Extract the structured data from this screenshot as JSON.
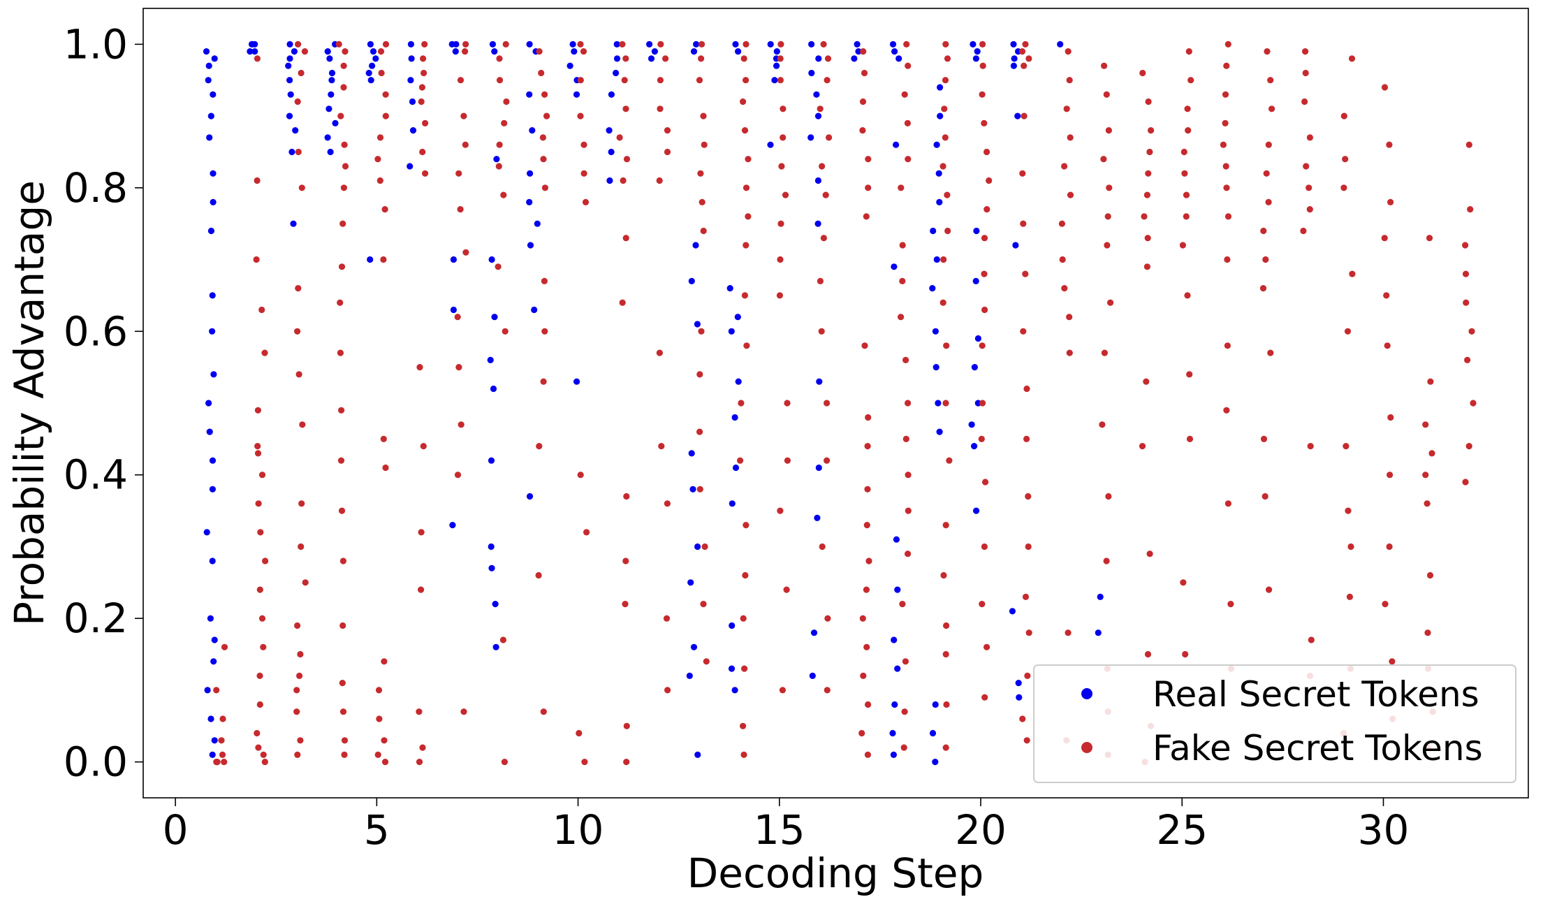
{
  "chart_data": {
    "type": "scatter",
    "title": "",
    "xlabel": "Decoding Step",
    "ylabel": "Probability Advantage",
    "xlim": [
      -0.8,
      33.6
    ],
    "ylim": [
      -0.05,
      1.05
    ],
    "xticks": [
      0,
      5,
      10,
      15,
      20,
      25,
      30
    ],
    "yticks": [
      0.0,
      0.2,
      0.4,
      0.6,
      0.8,
      1.0
    ],
    "xtick_labels": [
      "0",
      "5",
      "10",
      "15",
      "20",
      "25",
      "30"
    ],
    "ytick_labels": [
      "0.0",
      "0.2",
      "0.4",
      "0.6",
      "0.8",
      "1.0"
    ],
    "grid": false,
    "legend_position": "bottom-right",
    "series": [
      {
        "name": "Real Secret Tokens",
        "color": "#0000ee",
        "points": [
          {
            "step": 1,
            "y": [
              0.99,
              0.98,
              0.97,
              0.95,
              0.93,
              0.9,
              0.87,
              0.82,
              0.78,
              0.74,
              0.65,
              0.6,
              0.54,
              0.5,
              0.46,
              0.42,
              0.38,
              0.32,
              0.28,
              0.2,
              0.17,
              0.14,
              0.1,
              0.06,
              0.03,
              0.01
            ]
          },
          {
            "step": 2,
            "y": [
              1.0,
              1.0,
              0.99,
              1.0,
              0.99
            ]
          },
          {
            "step": 3,
            "y": [
              1.0,
              0.99,
              0.98,
              0.97,
              0.95,
              0.93,
              0.9,
              0.88,
              0.85,
              0.75
            ]
          },
          {
            "step": 4,
            "y": [
              1.0,
              0.99,
              0.98,
              0.96,
              0.95,
              0.93,
              0.91,
              0.89,
              0.87,
              0.85
            ]
          },
          {
            "step": 5,
            "y": [
              1.0,
              0.99,
              0.98,
              0.97,
              0.96,
              0.95,
              0.7
            ]
          },
          {
            "step": 6,
            "y": [
              1.0,
              0.98,
              0.95,
              0.92,
              0.88,
              0.83
            ]
          },
          {
            "step": 7,
            "y": [
              1.0,
              1.0,
              0.99,
              0.7,
              0.63,
              0.33
            ]
          },
          {
            "step": 8,
            "y": [
              1.0,
              0.99,
              0.84,
              0.7,
              0.62,
              0.56,
              0.52,
              0.42,
              0.3,
              0.27,
              0.22,
              0.16
            ]
          },
          {
            "step": 9,
            "y": [
              1.0,
              0.99,
              0.93,
              0.88,
              0.82,
              0.78,
              0.75,
              0.72,
              0.63,
              0.37
            ]
          },
          {
            "step": 10,
            "y": [
              1.0,
              0.99,
              0.97,
              0.95,
              0.93,
              0.53
            ]
          },
          {
            "step": 11,
            "y": [
              1.0,
              0.98,
              0.96,
              0.93,
              0.88,
              0.85,
              0.81
            ]
          },
          {
            "step": 12,
            "y": [
              1.0,
              0.99,
              0.98
            ]
          },
          {
            "step": 13,
            "y": [
              1.0,
              0.99,
              0.72,
              0.67,
              0.61,
              0.43,
              0.38,
              0.3,
              0.25,
              0.16,
              0.12,
              0.01
            ]
          },
          {
            "step": 14,
            "y": [
              1.0,
              0.99,
              0.66,
              0.62,
              0.6,
              0.53,
              0.48,
              0.41,
              0.36,
              0.19,
              0.13,
              0.1
            ]
          },
          {
            "step": 15,
            "y": [
              1.0,
              0.99,
              0.98,
              0.97,
              0.95,
              0.86
            ]
          },
          {
            "step": 16,
            "y": [
              1.0,
              0.98,
              0.96,
              0.93,
              0.9,
              0.87,
              0.81,
              0.75,
              0.53,
              0.41,
              0.34,
              0.18,
              0.12
            ]
          },
          {
            "step": 17,
            "y": [
              1.0,
              0.99,
              0.98
            ]
          },
          {
            "step": 18,
            "y": [
              1.0,
              0.99,
              0.98,
              0.86,
              0.69,
              0.31,
              0.24,
              0.17,
              0.13,
              0.08,
              0.04,
              0.01
            ]
          },
          {
            "step": 19,
            "y": [
              0.94,
              0.9,
              0.86,
              0.82,
              0.78,
              0.74,
              0.7,
              0.66,
              0.6,
              0.55,
              0.5,
              0.46,
              0.08,
              0.04,
              0.0
            ]
          },
          {
            "step": 20,
            "y": [
              1.0,
              0.99,
              0.98,
              0.74,
              0.67,
              0.59,
              0.55,
              0.5,
              0.47,
              0.44,
              0.35
            ]
          },
          {
            "step": 21,
            "y": [
              1.0,
              0.99,
              0.98,
              0.97,
              0.9,
              0.72,
              0.21,
              0.11,
              0.09
            ]
          },
          {
            "step": 22,
            "y": [
              1.0
            ]
          },
          {
            "step": 23,
            "y": [
              0.23,
              0.18
            ]
          }
        ]
      },
      {
        "name": "Fake Secret Tokens",
        "color": "#c62a2e",
        "points": [
          {
            "step": 1,
            "y": [
              0.16,
              0.1,
              0.06,
              0.03,
              0.01,
              0.0,
              0.0,
              0.0,
              0.0
            ]
          },
          {
            "step": 2,
            "y": [
              0.98,
              0.81,
              0.7,
              0.63,
              0.57,
              0.49,
              0.44,
              0.43,
              0.4,
              0.36,
              0.32,
              0.28,
              0.24,
              0.2,
              0.16,
              0.12,
              0.08,
              0.04,
              0.02,
              0.01,
              0.0
            ]
          },
          {
            "step": 3,
            "y": [
              1.0,
              0.99,
              0.96,
              0.92,
              0.85,
              0.8,
              0.66,
              0.6,
              0.54,
              0.47,
              0.36,
              0.3,
              0.25,
              0.19,
              0.15,
              0.12,
              0.1,
              0.07,
              0.03,
              0.01
            ]
          },
          {
            "step": 4,
            "y": [
              1.0,
              0.99,
              0.97,
              0.94,
              0.9,
              0.86,
              0.83,
              0.8,
              0.75,
              0.69,
              0.64,
              0.57,
              0.49,
              0.42,
              0.35,
              0.28,
              0.19,
              0.11,
              0.07,
              0.03,
              0.01
            ]
          },
          {
            "step": 5,
            "y": [
              1.0,
              0.99,
              0.96,
              0.93,
              0.9,
              0.87,
              0.84,
              0.81,
              0.77,
              0.7,
              0.45,
              0.41,
              0.14,
              0.1,
              0.06,
              0.03,
              0.01,
              0.0
            ]
          },
          {
            "step": 6,
            "y": [
              1.0,
              0.98,
              0.96,
              0.94,
              0.92,
              0.89,
              0.85,
              0.82,
              0.55,
              0.44,
              0.32,
              0.24,
              0.07,
              0.02,
              0.0
            ]
          },
          {
            "step": 7,
            "y": [
              1.0,
              0.99,
              0.95,
              0.9,
              0.86,
              0.82,
              0.77,
              0.71,
              0.62,
              0.55,
              0.47,
              0.4,
              0.07
            ]
          },
          {
            "step": 8,
            "y": [
              1.0,
              0.98,
              0.95,
              0.92,
              0.89,
              0.86,
              0.83,
              0.79,
              0.69,
              0.6,
              0.17,
              0.0
            ]
          },
          {
            "step": 9,
            "y": [
              0.99,
              0.96,
              0.93,
              0.9,
              0.87,
              0.84,
              0.8,
              0.67,
              0.6,
              0.53,
              0.44,
              0.26,
              0.07
            ]
          },
          {
            "step": 10,
            "y": [
              1.0,
              0.99,
              0.95,
              0.9,
              0.86,
              0.82,
              0.78,
              0.4,
              0.32,
              0.04,
              0.0
            ]
          },
          {
            "step": 11,
            "y": [
              1.0,
              0.98,
              0.95,
              0.91,
              0.87,
              0.84,
              0.81,
              0.73,
              0.64,
              0.37,
              0.28,
              0.22,
              0.05,
              0.0
            ]
          },
          {
            "step": 12,
            "y": [
              1.0,
              0.98,
              0.95,
              0.91,
              0.88,
              0.85,
              0.81,
              0.57,
              0.44,
              0.36,
              0.2,
              0.1
            ]
          },
          {
            "step": 13,
            "y": [
              1.0,
              0.98,
              0.95,
              0.9,
              0.86,
              0.82,
              0.78,
              0.74,
              0.6,
              0.54,
              0.46,
              0.38,
              0.3,
              0.22,
              0.14
            ]
          },
          {
            "step": 14,
            "y": [
              1.0,
              0.98,
              0.95,
              0.92,
              0.88,
              0.84,
              0.8,
              0.76,
              0.72,
              0.65,
              0.58,
              0.5,
              0.42,
              0.33,
              0.26,
              0.2,
              0.13,
              0.05,
              0.01
            ]
          },
          {
            "step": 15,
            "y": [
              1.0,
              0.98,
              0.95,
              0.91,
              0.87,
              0.83,
              0.79,
              0.75,
              0.7,
              0.65,
              0.5,
              0.42,
              0.35,
              0.24,
              0.1
            ]
          },
          {
            "step": 16,
            "y": [
              1.0,
              0.98,
              0.95,
              0.91,
              0.87,
              0.83,
              0.79,
              0.73,
              0.67,
              0.6,
              0.5,
              0.42,
              0.3,
              0.2,
              0.1
            ]
          },
          {
            "step": 17,
            "y": [
              0.99,
              0.96,
              0.92,
              0.88,
              0.84,
              0.8,
              0.76,
              0.58,
              0.48,
              0.44,
              0.38,
              0.33,
              0.28,
              0.24,
              0.2,
              0.16,
              0.12,
              0.08,
              0.04,
              0.01
            ]
          },
          {
            "step": 18,
            "y": [
              1.0,
              0.97,
              0.93,
              0.89,
              0.84,
              0.8,
              0.72,
              0.67,
              0.62,
              0.56,
              0.5,
              0.45,
              0.4,
              0.35,
              0.29,
              0.22,
              0.14,
              0.07,
              0.02
            ]
          },
          {
            "step": 19,
            "y": [
              1.0,
              0.98,
              0.95,
              0.91,
              0.87,
              0.83,
              0.79,
              0.74,
              0.7,
              0.64,
              0.58,
              0.5,
              0.42,
              0.33,
              0.26,
              0.19,
              0.15,
              0.08,
              0.02
            ]
          },
          {
            "step": 20,
            "y": [
              1.0,
              0.97,
              0.93,
              0.89,
              0.85,
              0.81,
              0.77,
              0.73,
              0.68,
              0.63,
              0.58,
              0.5,
              0.45,
              0.39,
              0.3,
              0.22,
              0.16,
              0.09
            ]
          },
          {
            "step": 21,
            "y": [
              1.0,
              0.99,
              0.98,
              0.97,
              0.9,
              0.82,
              0.75,
              0.68,
              0.6,
              0.52,
              0.45,
              0.37,
              0.3,
              0.23,
              0.18,
              0.12,
              0.06,
              0.03
            ]
          },
          {
            "step": 22,
            "y": [
              0.99,
              0.95,
              0.91,
              0.87,
              0.83,
              0.79,
              0.75,
              0.7,
              0.66,
              0.62,
              0.57,
              0.18,
              0.03
            ]
          },
          {
            "step": 23,
            "y": [
              0.97,
              0.93,
              0.88,
              0.84,
              0.8,
              0.76,
              0.72,
              0.64,
              0.57,
              0.47,
              0.37,
              0.28,
              0.13,
              0.07,
              0.01
            ]
          },
          {
            "step": 24,
            "y": [
              0.96,
              0.92,
              0.88,
              0.85,
              0.82,
              0.79,
              0.76,
              0.73,
              0.69,
              0.53,
              0.44,
              0.29,
              0.15,
              0.05,
              0.0
            ]
          },
          {
            "step": 25,
            "y": [
              0.99,
              0.95,
              0.91,
              0.88,
              0.85,
              0.82,
              0.79,
              0.76,
              0.72,
              0.65,
              0.54,
              0.45,
              0.25,
              0.15
            ]
          },
          {
            "step": 26,
            "y": [
              1.0,
              0.97,
              0.93,
              0.89,
              0.86,
              0.83,
              0.8,
              0.76,
              0.7,
              0.58,
              0.49,
              0.36,
              0.22,
              0.13
            ]
          },
          {
            "step": 27,
            "y": [
              0.99,
              0.95,
              0.91,
              0.86,
              0.82,
              0.78,
              0.74,
              0.7,
              0.66,
              0.57,
              0.45,
              0.37,
              0.24
            ]
          },
          {
            "step": 28,
            "y": [
              0.99,
              0.96,
              0.92,
              0.87,
              0.83,
              0.8,
              0.77,
              0.74,
              0.44,
              0.17,
              0.12
            ]
          },
          {
            "step": 29,
            "y": [
              0.98,
              0.9,
              0.84,
              0.8,
              0.68,
              0.6,
              0.44,
              0.35,
              0.3,
              0.23,
              0.13,
              0.04
            ]
          },
          {
            "step": 30,
            "y": [
              0.94,
              0.86,
              0.78,
              0.73,
              0.65,
              0.58,
              0.48,
              0.4,
              0.3,
              0.22,
              0.14,
              0.06
            ]
          },
          {
            "step": 31,
            "y": [
              0.73,
              0.53,
              0.47,
              0.43,
              0.4,
              0.36,
              0.26,
              0.18,
              0.13,
              0.07,
              0.02
            ]
          },
          {
            "step": 32,
            "y": [
              0.86,
              0.77,
              0.72,
              0.68,
              0.64,
              0.6,
              0.56,
              0.5,
              0.44,
              0.39
            ]
          }
        ]
      }
    ]
  }
}
